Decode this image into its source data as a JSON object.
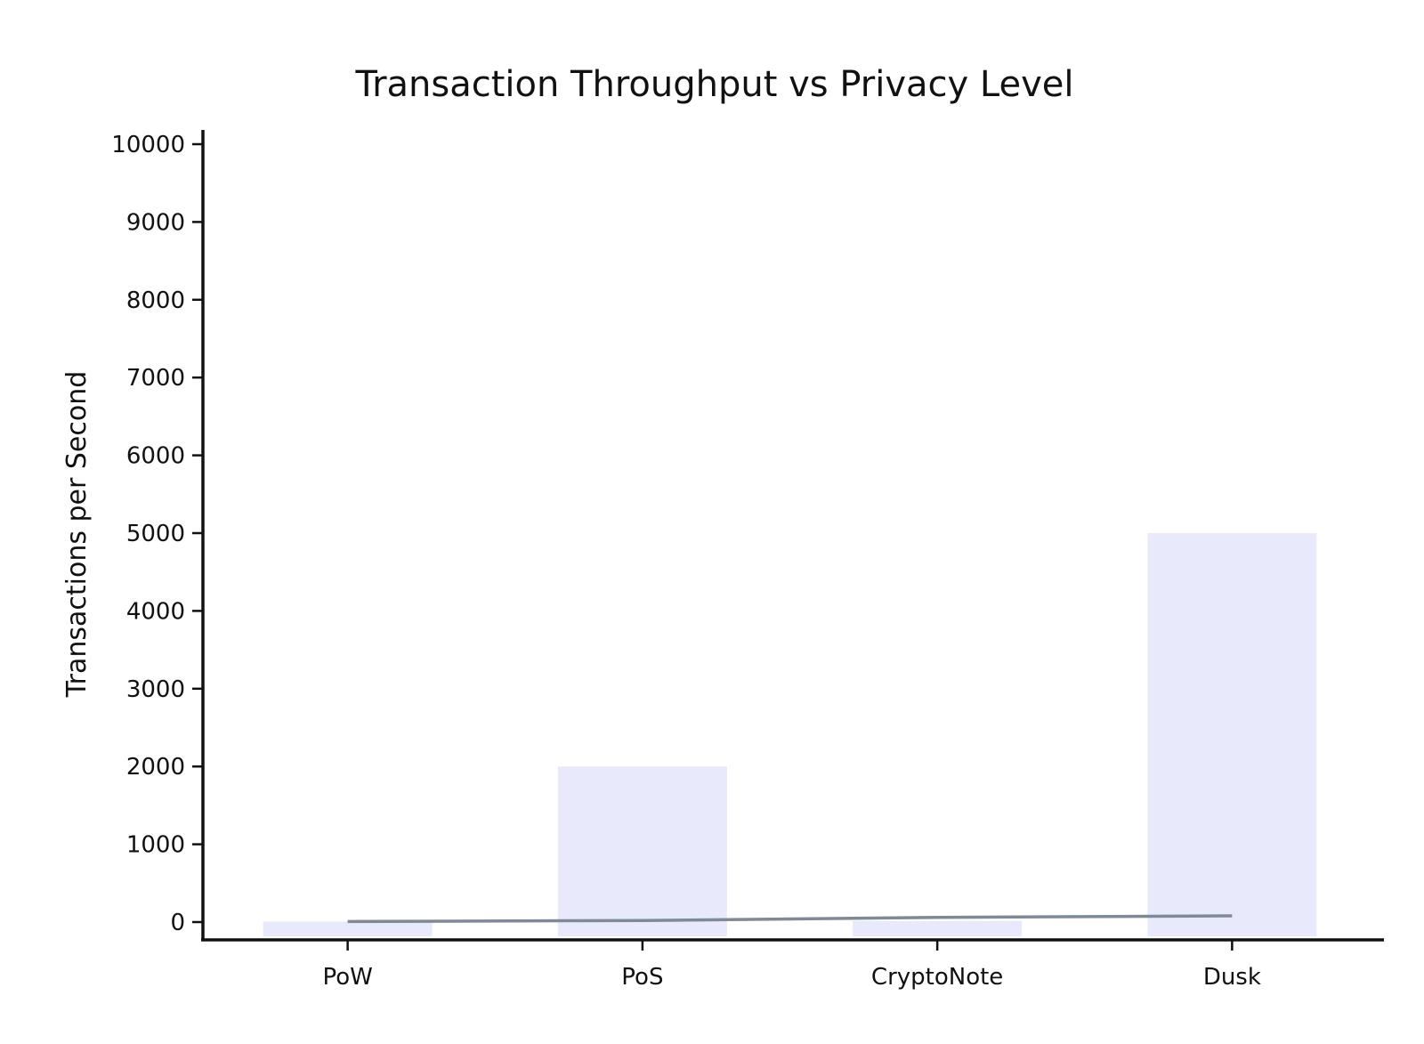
{
  "chart_data": {
    "type": "bar",
    "title": "Transaction Throughput vs Privacy Level",
    "xlabel": "",
    "ylabel": "Transactions per Second",
    "categories": [
      "PoW",
      "PoS",
      "CryptoNote",
      "Dusk"
    ],
    "series": [
      {
        "type": "bar",
        "values": [
          7,
          2000,
          15,
          5000
        ],
        "color": "#e8eafc"
      },
      {
        "type": "line",
        "values": [
          7,
          20,
          60,
          80
        ],
        "color": "#7f8a96"
      }
    ],
    "ylim": [
      0,
      10000
    ],
    "yticks": [
      0,
      1000,
      2000,
      3000,
      4000,
      5000,
      6000,
      7000,
      8000,
      9000,
      10000
    ],
    "grid": false,
    "legend": "none"
  }
}
